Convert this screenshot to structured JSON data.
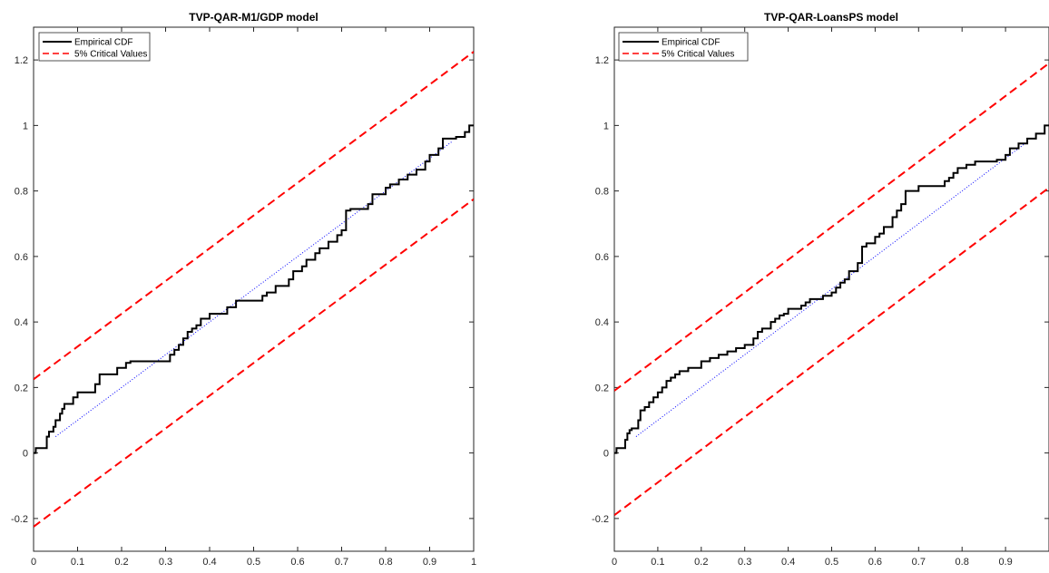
{
  "chart_data": [
    {
      "type": "line",
      "title": "TVP-QAR-M1/GDP model",
      "xlabel": "",
      "ylabel": "",
      "xlim": [
        0,
        1
      ],
      "ylim": [
        -0.3,
        1.3
      ],
      "x_ticks": [
        "0",
        "0.1",
        "0.2",
        "0.3",
        "0.4",
        "0.5",
        "0.6",
        "0.7",
        "0.8",
        "0.9",
        "1"
      ],
      "y_ticks": [
        "-0.2",
        "0",
        "0.2",
        "0.4",
        "0.6",
        "0.8",
        "1",
        "1.2"
      ],
      "legend": {
        "position": "top-left",
        "entries": [
          "Empirical CDF",
          "5% Critical Values"
        ]
      },
      "series": [
        {
          "name": "Empirical CDF",
          "style": "step",
          "color": "#000000",
          "x": [
            0,
            0.005,
            0.03,
            0.035,
            0.045,
            0.05,
            0.06,
            0.065,
            0.07,
            0.09,
            0.1,
            0.14,
            0.15,
            0.19,
            0.21,
            0.22,
            0.31,
            0.32,
            0.33,
            0.34,
            0.35,
            0.36,
            0.37,
            0.38,
            0.4,
            0.44,
            0.46,
            0.52,
            0.53,
            0.55,
            0.58,
            0.59,
            0.61,
            0.62,
            0.64,
            0.65,
            0.67,
            0.69,
            0.7,
            0.71,
            0.72,
            0.76,
            0.77,
            0.8,
            0.81,
            0.83,
            0.85,
            0.87,
            0.89,
            0.9,
            0.92,
            0.93,
            0.96,
            0.98,
            0.99,
            1
          ],
          "y": [
            0,
            0.015,
            0.05,
            0.065,
            0.08,
            0.1,
            0.12,
            0.135,
            0.15,
            0.17,
            0.185,
            0.21,
            0.24,
            0.26,
            0.275,
            0.28,
            0.3,
            0.315,
            0.33,
            0.35,
            0.37,
            0.38,
            0.39,
            0.41,
            0.425,
            0.445,
            0.465,
            0.48,
            0.49,
            0.51,
            0.53,
            0.555,
            0.57,
            0.59,
            0.61,
            0.625,
            0.645,
            0.665,
            0.68,
            0.74,
            0.745,
            0.76,
            0.79,
            0.81,
            0.82,
            0.835,
            0.85,
            0.865,
            0.89,
            0.91,
            0.93,
            0.96,
            0.965,
            0.98,
            1,
            1
          ]
        },
        {
          "name": "5% Critical Values",
          "style": "dashed",
          "color": "#ff0000",
          "x": [
            0,
            1
          ],
          "y": [
            0.225,
            1.225
          ]
        },
        {
          "style": "dashed",
          "color": "#ff0000",
          "x": [
            0,
            1
          ],
          "y": [
            -0.225,
            0.775
          ]
        },
        {
          "style": "dotted",
          "color": "#0000ff",
          "x": [
            0.05,
            0.95
          ],
          "y": [
            0.05,
            0.95
          ]
        }
      ]
    },
    {
      "type": "line",
      "title": "TVP-QAR-LoansPS model",
      "xlabel": "",
      "ylabel": "",
      "xlim": [
        0,
        1
      ],
      "ylim": [
        -0.3,
        1.3
      ],
      "x_ticks": [
        "0",
        "0.1",
        "0.2",
        "0.3",
        "0.4",
        "0.5",
        "0.6",
        "0.7",
        "0.8",
        "0.9"
      ],
      "y_ticks": [
        "-0.2",
        "0",
        "0.2",
        "0.4",
        "0.6",
        "0.8",
        "1",
        "1.2"
      ],
      "legend": {
        "position": "top-left",
        "entries": [
          "Empirical CDF",
          "5% Critical Values"
        ]
      },
      "series": [
        {
          "name": "Empirical CDF",
          "style": "step",
          "color": "#000000",
          "x": [
            0,
            0.005,
            0.025,
            0.03,
            0.035,
            0.04,
            0.055,
            0.06,
            0.07,
            0.08,
            0.09,
            0.1,
            0.11,
            0.12,
            0.13,
            0.14,
            0.15,
            0.17,
            0.2,
            0.22,
            0.24,
            0.26,
            0.28,
            0.3,
            0.32,
            0.33,
            0.34,
            0.36,
            0.37,
            0.38,
            0.39,
            0.4,
            0.43,
            0.44,
            0.45,
            0.48,
            0.5,
            0.51,
            0.52,
            0.53,
            0.54,
            0.56,
            0.57,
            0.58,
            0.6,
            0.61,
            0.62,
            0.64,
            0.65,
            0.66,
            0.67,
            0.7,
            0.75,
            0.76,
            0.77,
            0.78,
            0.79,
            0.81,
            0.83,
            0.86,
            0.88,
            0.9,
            0.91,
            0.93,
            0.95,
            0.97,
            0.99,
            1
          ],
          "y": [
            0,
            0.015,
            0.04,
            0.06,
            0.07,
            0.075,
            0.1,
            0.13,
            0.14,
            0.155,
            0.17,
            0.185,
            0.2,
            0.22,
            0.23,
            0.24,
            0.25,
            0.26,
            0.28,
            0.29,
            0.3,
            0.31,
            0.32,
            0.33,
            0.35,
            0.37,
            0.38,
            0.4,
            0.41,
            0.42,
            0.425,
            0.44,
            0.45,
            0.46,
            0.47,
            0.48,
            0.49,
            0.505,
            0.52,
            0.53,
            0.555,
            0.58,
            0.63,
            0.64,
            0.66,
            0.67,
            0.69,
            0.72,
            0.74,
            0.76,
            0.8,
            0.815,
            0.815,
            0.83,
            0.84,
            0.855,
            0.87,
            0.88,
            0.89,
            0.89,
            0.895,
            0.91,
            0.93,
            0.945,
            0.96,
            0.975,
            1,
            1
          ]
        },
        {
          "name": "5% Critical Values",
          "style": "dashed",
          "color": "#ff0000",
          "x": [
            0,
            1
          ],
          "y": [
            0.19,
            1.19
          ]
        },
        {
          "style": "dashed",
          "color": "#ff0000",
          "x": [
            0,
            1
          ],
          "y": [
            -0.19,
            0.81
          ]
        },
        {
          "style": "dotted",
          "color": "#0000ff",
          "x": [
            0.05,
            0.95
          ],
          "y": [
            0.05,
            0.95
          ]
        }
      ]
    }
  ]
}
